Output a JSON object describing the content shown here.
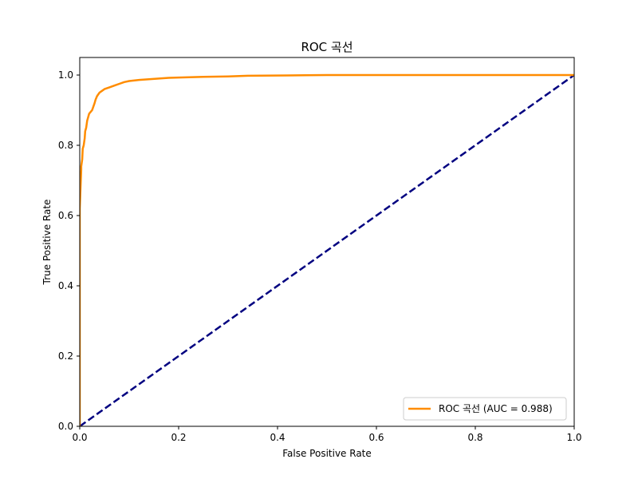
{
  "chart_data": {
    "type": "line",
    "title": "ROC 곡선",
    "xlabel": "False Positive Rate",
    "ylabel": "True Positive Rate",
    "xlim": [
      0.0,
      1.0
    ],
    "ylim": [
      0.0,
      1.05
    ],
    "xticks": [
      0.0,
      0.2,
      0.4,
      0.6,
      0.8,
      1.0
    ],
    "yticks": [
      0.0,
      0.2,
      0.4,
      0.6,
      0.8,
      1.0
    ],
    "xtick_labels": [
      "0.0",
      "0.2",
      "0.4",
      "0.6",
      "0.8",
      "1.0"
    ],
    "ytick_labels": [
      "0.0",
      "0.2",
      "0.4",
      "0.6",
      "0.8",
      "1.0"
    ],
    "grid": false,
    "legend_position": "lower-right",
    "series": [
      {
        "name": "ROC 곡선 (AUC = 0.988)",
        "color": "#ff8c00",
        "style": "solid",
        "x": [
          0.0,
          0.0,
          0.003,
          0.003,
          0.005,
          0.006,
          0.008,
          0.01,
          0.011,
          0.013,
          0.015,
          0.017,
          0.019,
          0.022,
          0.025,
          0.03,
          0.032,
          0.035,
          0.04,
          0.045,
          0.05,
          0.06,
          0.07,
          0.08,
          0.09,
          0.1,
          0.12,
          0.14,
          0.16,
          0.18,
          0.2,
          0.25,
          0.3,
          0.34,
          0.42,
          0.5,
          0.6,
          0.7,
          0.8,
          0.9,
          1.0
        ],
        "y": [
          0.0,
          0.62,
          0.73,
          0.74,
          0.76,
          0.79,
          0.8,
          0.82,
          0.84,
          0.85,
          0.87,
          0.88,
          0.89,
          0.895,
          0.9,
          0.92,
          0.93,
          0.94,
          0.95,
          0.955,
          0.96,
          0.965,
          0.97,
          0.975,
          0.98,
          0.983,
          0.986,
          0.988,
          0.99,
          0.992,
          0.993,
          0.995,
          0.996,
          0.998,
          0.999,
          1.0,
          1.0,
          1.0,
          1.0,
          1.0,
          1.0
        ]
      },
      {
        "name": "",
        "color": "#000080",
        "style": "dashed",
        "x": [
          0.0,
          1.0
        ],
        "y": [
          0.0,
          1.0
        ]
      }
    ]
  }
}
